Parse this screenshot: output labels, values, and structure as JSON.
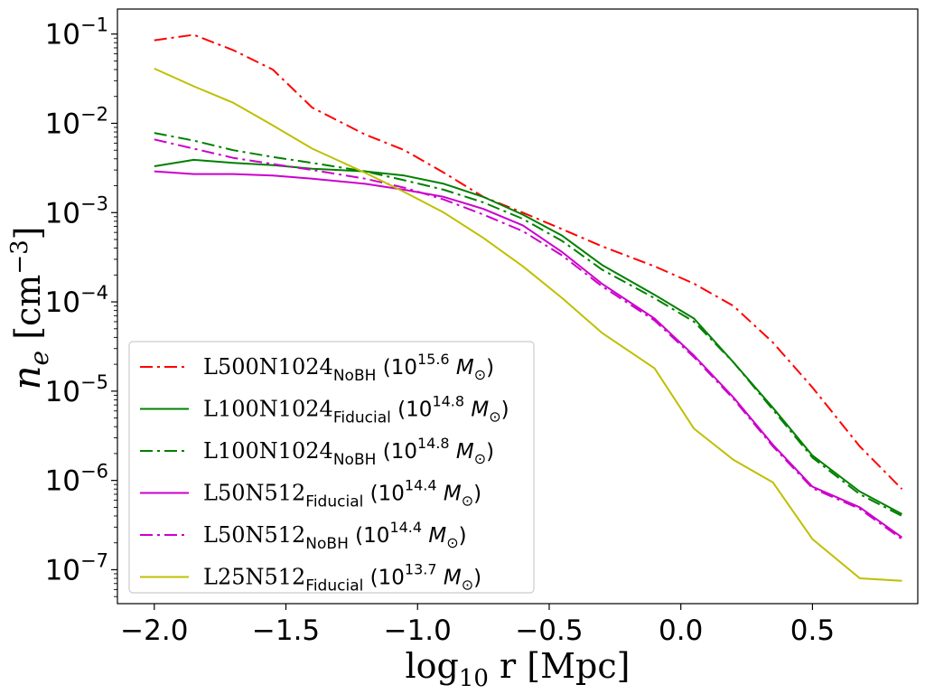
{
  "chart_data": {
    "type": "line",
    "title": "",
    "xlabel": "log₁₀ r [Mpc]",
    "xlabel_main": "log",
    "xlabel_sub": "10",
    "xlabel_rest": " r [Mpc]",
    "ylabel": "n_e [cm⁻³]",
    "ylabel_main": "n",
    "ylabel_sub": "e",
    "ylabel_unit": " [cm",
    "ylabel_unit_exp": "−3",
    "ylabel_unit_close": "]",
    "xlim": [
      -2.14,
      0.9
    ],
    "ylim_log10": [
      -7.38,
      -0.72
    ],
    "yscale": "log",
    "legend_position": "lower-left",
    "x_ticks": [
      -2.0,
      -1.5,
      -1.0,
      -0.5,
      0.0,
      0.5
    ],
    "x_tick_labels": [
      "−2.0",
      "−1.5",
      "−1.0",
      "−0.5",
      "0.0",
      "0.5"
    ],
    "y_ticks_log10": [
      -1,
      -2,
      -3,
      -4,
      -5,
      -6,
      -7
    ],
    "y_tick_labels": [
      {
        "base": "10",
        "exp": "−1"
      },
      {
        "base": "10",
        "exp": "−2"
      },
      {
        "base": "10",
        "exp": "−3"
      },
      {
        "base": "10",
        "exp": "−4"
      },
      {
        "base": "10",
        "exp": "−5"
      },
      {
        "base": "10",
        "exp": "−6"
      },
      {
        "base": "10",
        "exp": "−7"
      }
    ],
    "series": [
      {
        "name": "L500N1024_NoBH (10^15.6 M⊙)",
        "label_main": "L500N1024",
        "label_sub": "NoBH",
        "label_mass_exp": "15.6",
        "color": "#ff0000",
        "style": "dashdot",
        "x": [
          -2.0,
          -1.85,
          -1.7,
          -1.55,
          -1.4,
          -1.2,
          -1.05,
          -0.9,
          -0.75,
          -0.6,
          -0.45,
          -0.3,
          -0.1,
          0.05,
          0.2,
          0.35,
          0.5,
          0.68,
          0.84
        ],
        "y": [
          0.085,
          0.098,
          0.066,
          0.04,
          0.015,
          0.0075,
          0.005,
          0.0028,
          0.0015,
          0.001,
          0.00065,
          0.00042,
          0.00025,
          0.00016,
          9e-05,
          3.5e-05,
          1.1e-05,
          2.4e-06,
          8e-07
        ]
      },
      {
        "name": "L100N1024_Fiducial (10^14.8 M⊙)",
        "label_main": "L100N1024",
        "label_sub": "Fiducial",
        "label_mass_exp": "14.8",
        "color": "#008000",
        "style": "solid",
        "x": [
          -2.0,
          -1.85,
          -1.7,
          -1.55,
          -1.4,
          -1.2,
          -1.05,
          -0.9,
          -0.75,
          -0.6,
          -0.45,
          -0.3,
          -0.1,
          0.05,
          0.2,
          0.35,
          0.5,
          0.68,
          0.84
        ],
        "y": [
          0.0033,
          0.0039,
          0.0036,
          0.0034,
          0.0031,
          0.0029,
          0.0026,
          0.0021,
          0.0015,
          0.00095,
          0.00055,
          0.00026,
          0.00012,
          6.5e-05,
          2.1e-05,
          6.5e-06,
          1.9e-06,
          7.5e-07,
          4.2e-07
        ]
      },
      {
        "name": "L100N1024_NoBH (10^14.8 M⊙)",
        "label_main": "L100N1024",
        "label_sub": "NoBH",
        "label_mass_exp": "14.8",
        "color": "#008000",
        "style": "dashdot",
        "x": [
          -2.0,
          -1.85,
          -1.7,
          -1.55,
          -1.4,
          -1.2,
          -1.05,
          -0.9,
          -0.75,
          -0.6,
          -0.45,
          -0.3,
          -0.1,
          0.05,
          0.2,
          0.35,
          0.5,
          0.68,
          0.84
        ],
        "y": [
          0.0078,
          0.0064,
          0.005,
          0.0042,
          0.0036,
          0.0029,
          0.0023,
          0.0018,
          0.0013,
          0.00085,
          0.00048,
          0.00023,
          0.00011,
          6e-05,
          2.1e-05,
          6.2e-06,
          1.8e-06,
          7e-07,
          4e-07
        ]
      },
      {
        "name": "L50N512_Fiducial (10^14.4 M⊙)",
        "label_main": "L50N512",
        "label_sub": "Fiducial",
        "label_mass_exp": "14.4",
        "color": "#cc00cc",
        "style": "solid",
        "x": [
          -2.0,
          -1.85,
          -1.7,
          -1.55,
          -1.4,
          -1.2,
          -1.05,
          -0.9,
          -0.75,
          -0.6,
          -0.45,
          -0.3,
          -0.1,
          0.05,
          0.2,
          0.35,
          0.5,
          0.68,
          0.84
        ],
        "y": [
          0.0029,
          0.0027,
          0.0027,
          0.0026,
          0.0024,
          0.0021,
          0.0018,
          0.0015,
          0.0011,
          0.00072,
          0.00036,
          0.00016,
          6.5e-05,
          2.5e-05,
          8.5e-06,
          2.5e-06,
          8.5e-07,
          5e-07,
          2.3e-07
        ]
      },
      {
        "name": "L50N512_NoBH (10^14.4 M⊙)",
        "label_main": "L50N512",
        "label_sub": "NoBH",
        "label_mass_exp": "14.4",
        "color": "#cc00cc",
        "style": "dashdot",
        "x": [
          -2.0,
          -1.85,
          -1.7,
          -1.55,
          -1.4,
          -1.2,
          -1.05,
          -0.9,
          -0.75,
          -0.6,
          -0.45,
          -0.3,
          -0.1,
          0.05,
          0.2,
          0.35,
          0.5,
          0.68,
          0.84
        ],
        "y": [
          0.0066,
          0.0052,
          0.0041,
          0.0035,
          0.003,
          0.0024,
          0.0019,
          0.0014,
          0.00095,
          0.00062,
          0.00033,
          0.00015,
          6.2e-05,
          2.4e-05,
          8.2e-06,
          2.4e-06,
          8.2e-07,
          4.8e-07,
          2.2e-07
        ]
      },
      {
        "name": "L25N512_Fiducial (10^13.7 M⊙)",
        "label_main": "L25N512",
        "label_sub": "Fiducial",
        "label_mass_exp": "13.7",
        "color": "#bfbf00",
        "style": "solid",
        "x": [
          -2.0,
          -1.85,
          -1.7,
          -1.55,
          -1.4,
          -1.2,
          -1.05,
          -0.9,
          -0.75,
          -0.6,
          -0.45,
          -0.3,
          -0.1,
          0.05,
          0.2,
          0.35,
          0.5,
          0.68,
          0.84
        ],
        "y": [
          0.041,
          0.026,
          0.017,
          0.0095,
          0.0052,
          0.0028,
          0.0017,
          0.001,
          0.00052,
          0.00025,
          0.00011,
          4.5e-05,
          1.8e-05,
          3.8e-06,
          1.7e-06,
          9.5e-07,
          2.2e-07,
          8e-08,
          7.5e-08
        ]
      }
    ]
  }
}
